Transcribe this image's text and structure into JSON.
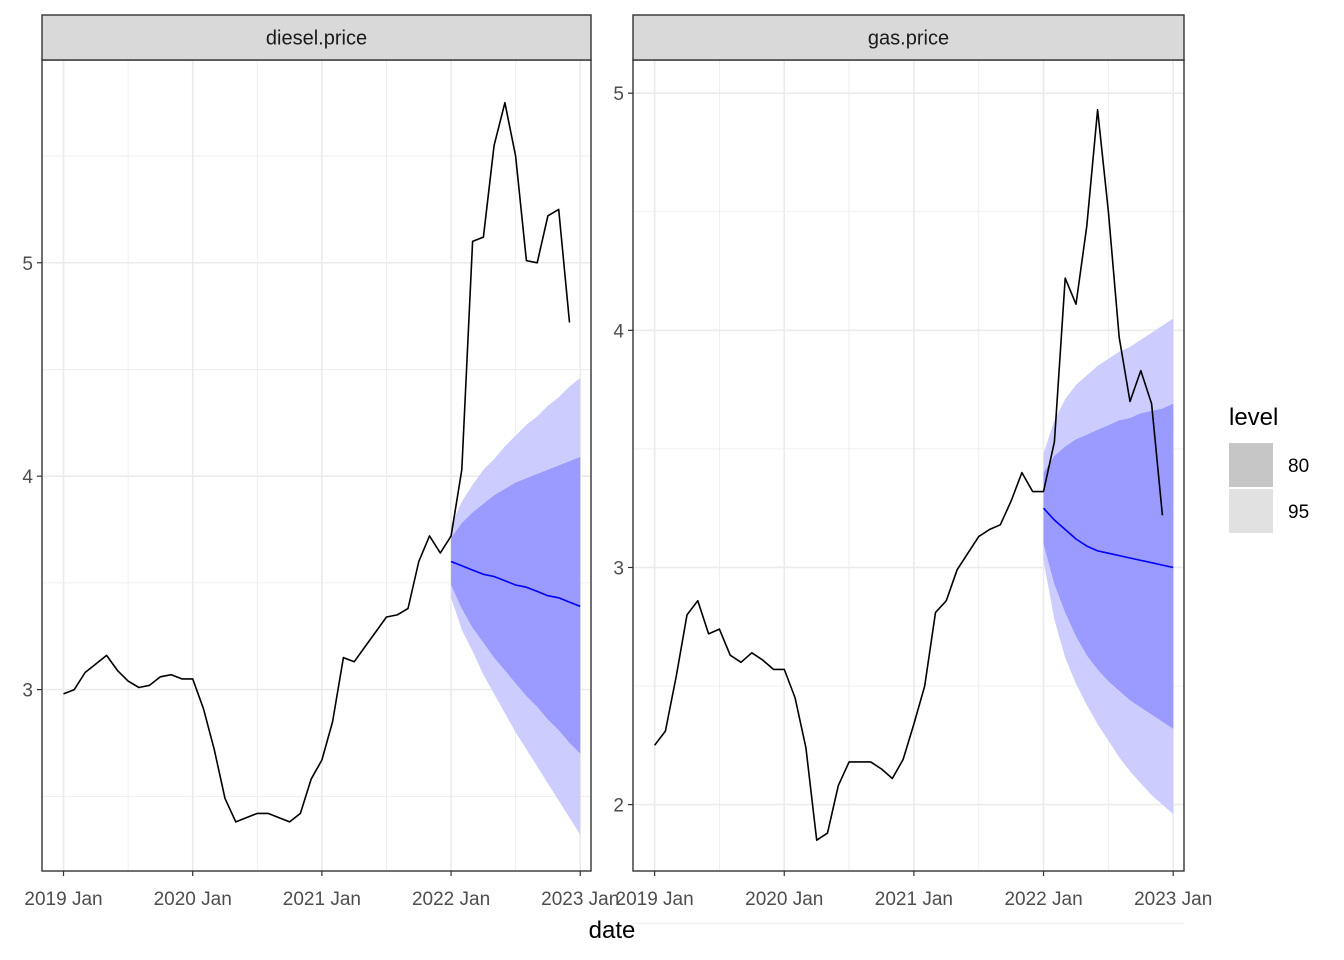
{
  "chart_data": {
    "type": "line",
    "xlabel": "date",
    "x_ticks": [
      "2019 Jan",
      "2020 Jan",
      "2021 Jan",
      "2022 Jan",
      "2023 Jan"
    ],
    "x_range": [
      "2018-11",
      "2023-02"
    ],
    "grid": true,
    "legend": {
      "title": "level",
      "placement": "right",
      "entries": [
        {
          "label": "80",
          "color": "#c6c6c6"
        },
        {
          "label": "95",
          "color": "#e1e1e1"
        }
      ]
    },
    "colors": {
      "observed": "#000000",
      "forecast_mean": "#0000ff",
      "band_95": "#ccccff",
      "band_80": "#9a9aff",
      "strip_fill": "#d9d9d9",
      "grid": "#ebebeb",
      "panel_border": "#333333"
    },
    "panels": [
      {
        "name": "diesel.price",
        "y_ticks": [
          3,
          4,
          5
        ],
        "ylim": [
          2.15,
          5.95
        ],
        "observed": {
          "start": "2019-01",
          "values": [
            2.98,
            3.0,
            3.08,
            3.12,
            3.16,
            3.09,
            3.04,
            3.01,
            3.02,
            3.06,
            3.07,
            3.05,
            3.05,
            2.91,
            2.72,
            2.49,
            2.38,
            2.4,
            2.42,
            2.42,
            2.4,
            2.38,
            2.42,
            2.58,
            2.67,
            2.85,
            3.15,
            3.13,
            3.2,
            3.27,
            3.34,
            3.35,
            3.38,
            3.6,
            3.72,
            3.64,
            3.72,
            4.03,
            5.1,
            5.12,
            5.55,
            5.75,
            5.5,
            5.01,
            5.0,
            5.22,
            5.25,
            4.72
          ]
        },
        "forecast": {
          "start": "2022-01",
          "mean": [
            3.6,
            3.58,
            3.56,
            3.54,
            3.53,
            3.51,
            3.49,
            3.48,
            3.46,
            3.44,
            3.43,
            3.41,
            3.39
          ],
          "lo80": [
            3.49,
            3.38,
            3.29,
            3.22,
            3.15,
            3.09,
            3.03,
            2.97,
            2.92,
            2.86,
            2.81,
            2.75,
            2.7
          ],
          "hi80": [
            3.71,
            3.78,
            3.83,
            3.87,
            3.91,
            3.94,
            3.97,
            3.99,
            4.01,
            4.03,
            4.05,
            4.07,
            4.09
          ],
          "lo95": [
            3.43,
            3.28,
            3.18,
            3.07,
            2.98,
            2.89,
            2.8,
            2.72,
            2.64,
            2.56,
            2.48,
            2.4,
            2.32
          ],
          "hi95": [
            3.77,
            3.88,
            3.96,
            4.03,
            4.08,
            4.14,
            4.19,
            4.24,
            4.28,
            4.33,
            4.37,
            4.42,
            4.46
          ]
        }
      },
      {
        "name": "gas.price",
        "y_ticks": [
          2,
          3,
          4,
          5
        ],
        "ylim": [
          1.72,
          5.14
        ],
        "observed": {
          "start": "2019-01",
          "values": [
            2.25,
            2.31,
            2.54,
            2.8,
            2.86,
            2.72,
            2.74,
            2.63,
            2.6,
            2.64,
            2.61,
            2.57,
            2.57,
            2.45,
            2.24,
            1.85,
            1.88,
            2.08,
            2.18,
            2.18,
            2.18,
            2.15,
            2.11,
            2.19,
            2.34,
            2.5,
            2.81,
            2.86,
            2.99,
            3.06,
            3.13,
            3.16,
            3.18,
            3.28,
            3.4,
            3.32,
            3.32,
            3.53,
            4.22,
            4.11,
            4.44,
            4.93,
            4.5,
            3.97,
            3.7,
            3.83,
            3.69,
            3.22
          ]
        },
        "forecast": {
          "start": "2022-01",
          "mean": [
            3.25,
            3.2,
            3.16,
            3.12,
            3.09,
            3.07,
            3.06,
            3.05,
            3.04,
            3.03,
            3.02,
            3.01,
            3.0
          ],
          "lo80": [
            3.1,
            2.93,
            2.81,
            2.71,
            2.63,
            2.57,
            2.52,
            2.48,
            2.44,
            2.41,
            2.38,
            2.35,
            2.32
          ],
          "hi80": [
            3.4,
            3.47,
            3.51,
            3.54,
            3.56,
            3.58,
            3.6,
            3.62,
            3.63,
            3.65,
            3.66,
            3.67,
            3.69
          ],
          "lo95": [
            3.03,
            2.78,
            2.62,
            2.51,
            2.42,
            2.34,
            2.27,
            2.2,
            2.14,
            2.09,
            2.04,
            2.0,
            1.96
          ],
          "hi95": [
            3.48,
            3.62,
            3.71,
            3.77,
            3.81,
            3.85,
            3.88,
            3.91,
            3.93,
            3.96,
            3.99,
            4.02,
            4.05
          ]
        }
      }
    ]
  }
}
